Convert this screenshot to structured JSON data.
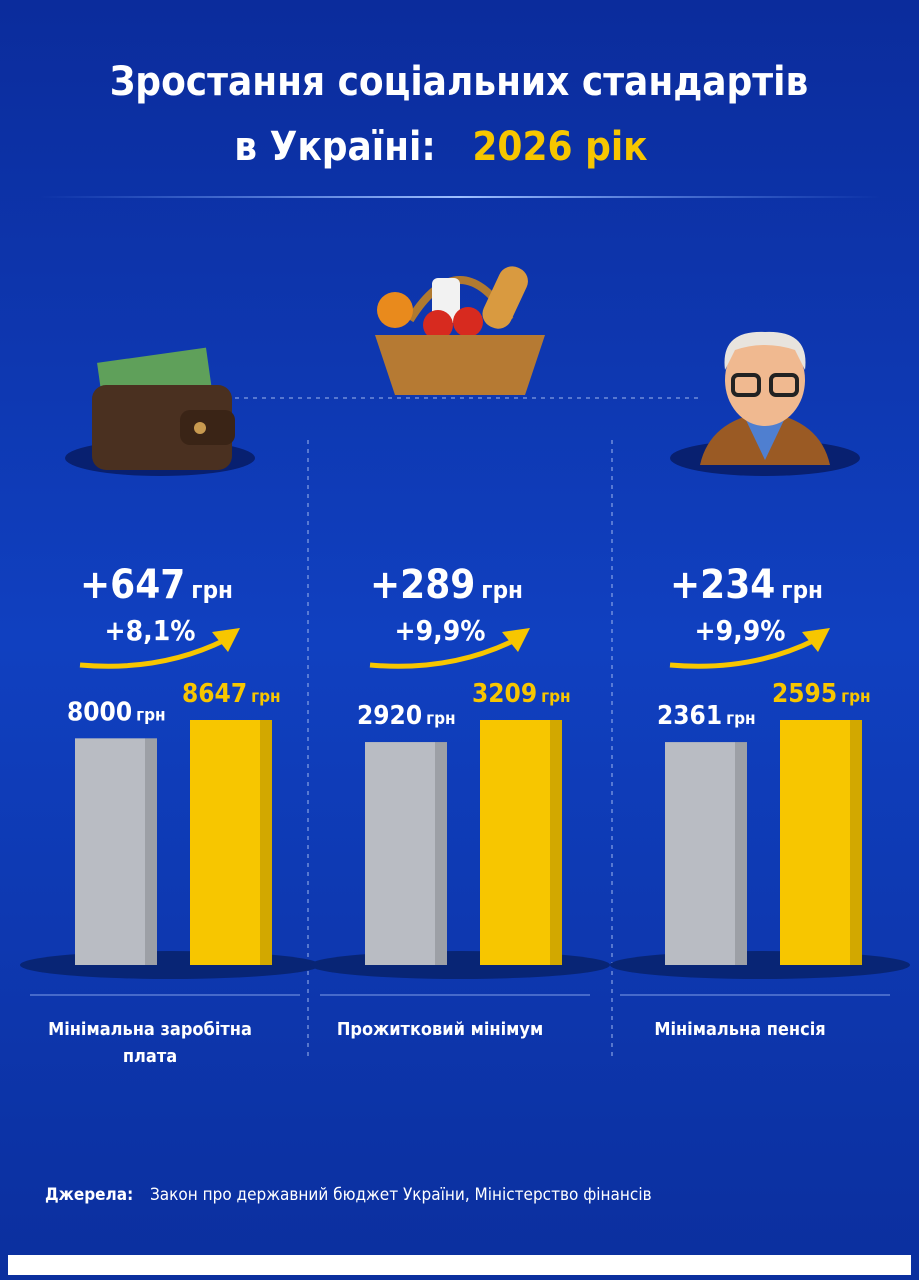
{
  "title_line1": "Зростання соціальних стандартів",
  "title_line2": "в Україні:",
  "title_highlight": "2026 рік",
  "unit": "грн",
  "source_label": "Джерела:",
  "source_text": "Закон про державний бюджет України, Міністерство фінансів",
  "chart_data": [
    {
      "type": "bar",
      "title": [
        "Мінімальна заробітна",
        "плата"
      ],
      "values": [
        8000,
        8647
      ],
      "colors": [
        "#b9bcc3",
        "#f7c600"
      ],
      "change": {
        "value": 647,
        "label": "+647"
      },
      "change_percent": {
        "value": 8.1,
        "label": "+8,1%"
      }
    },
    {
      "type": "bar",
      "title": [
        "Прожитковий мінімум"
      ],
      "values": [
        2920,
        3209
      ],
      "colors": [
        "#b9bcc3",
        "#f7c600"
      ],
      "change": {
        "value": 289,
        "label": "+289"
      },
      "change_percent": {
        "value": 9.9,
        "label": "+9,9%"
      }
    },
    {
      "type": "bar",
      "title": [
        "Мінімальна пенсія"
      ],
      "values": [
        2361,
        2595
      ],
      "colors": [
        "#b9bcc3",
        "#f7c600"
      ],
      "change": {
        "value": 234,
        "label": "+234"
      },
      "change_percent": {
        "value": 9.9,
        "label": "+9,9%"
      }
    }
  ]
}
